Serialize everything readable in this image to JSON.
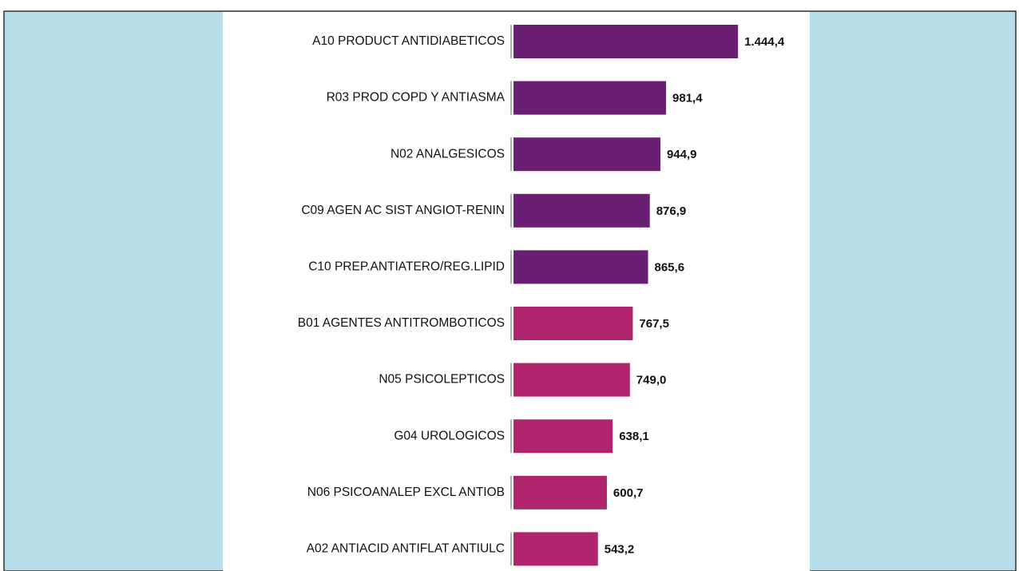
{
  "chart_data": {
    "type": "barh",
    "categories": [
      "A10 PRODUCT ANTIDIABETICOS",
      "R03 PROD COPD Y ANTIASMA",
      "N02 ANALGESICOS",
      "C09 AGEN AC SIST ANGIOT-RENIN",
      "C10 PREP.ANTIATERO/REG.LIPID",
      "B01 AGENTES ANTITROMBOTICOS",
      "N05 PSICOLEPTICOS",
      "G04 UROLOGICOS",
      "N06 PSICOANALEP EXCL ANTIOB",
      "A02 ANTIACID ANTIFLAT ANTIULC"
    ],
    "values": [
      1444.4,
      981.4,
      944.9,
      876.9,
      865.6,
      767.5,
      749.0,
      638.1,
      600.7,
      543.2
    ],
    "value_labels": [
      "1.444,4",
      "981,4",
      "944,9",
      "876,9",
      "865,6",
      "767,5",
      "749,0",
      "638,1",
      "600,7",
      "543,2"
    ],
    "colors": [
      "#6a1f74",
      "#6a1f74",
      "#6a1f74",
      "#6a1f74",
      "#6a1f74",
      "#b0246e",
      "#b0246e",
      "#b0246e",
      "#b0246e",
      "#b0246e"
    ],
    "xlim": [
      0,
      1500
    ]
  }
}
